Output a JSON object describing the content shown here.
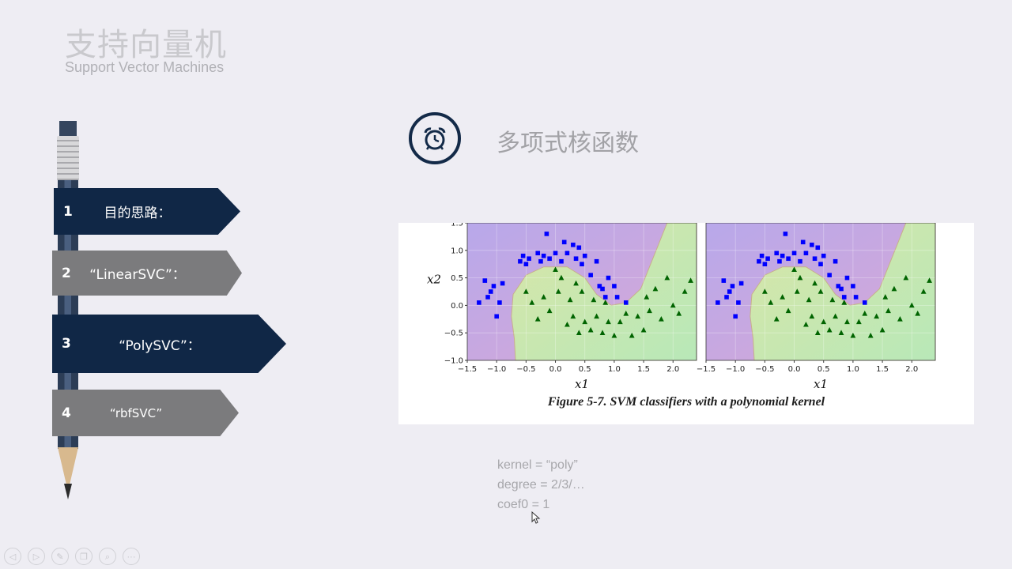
{
  "header": {
    "title_cn": "支持向量机",
    "title_en": "Support Vector Machines"
  },
  "menu": [
    {
      "num": "1",
      "label": "目的思路："
    },
    {
      "num": "2",
      "label": "“LinearSVC”："
    },
    {
      "num": "3",
      "label": "“PolySVC”："
    },
    {
      "num": "4",
      "label": "“rbfSVC”"
    }
  ],
  "section": {
    "icon": "alarm-clock-icon",
    "title": "多项式核函数"
  },
  "figure": {
    "caption": "Figure 5-7. SVM classifiers with a polynomial kernel"
  },
  "chart_data": [
    {
      "type": "scatter",
      "title": "",
      "xlabel": "x1",
      "ylabel": "x2",
      "xlim": [
        -1.5,
        2.4
      ],
      "ylim": [
        -1.0,
        1.5
      ],
      "x_ticks": [
        "−1.5",
        "−1.0",
        "−0.5",
        "0.0",
        "0.5",
        "1.0",
        "1.5",
        "2.0"
      ],
      "y_ticks": [
        "−1.0",
        "−0.5",
        "0.0",
        "0.5",
        "1.0",
        "1.5"
      ],
      "grid": true,
      "series": [
        {
          "marker": "square",
          "color": "#0000ff",
          "x": [
            -1.3,
            -1.2,
            -1.15,
            -1.1,
            -1.05,
            -1.0,
            -0.95,
            -0.9,
            -0.6,
            -0.55,
            -0.5,
            -0.45,
            -0.3,
            -0.25,
            -0.2,
            -0.15,
            -0.1,
            0.0,
            0.1,
            0.15,
            0.2,
            0.3,
            0.35,
            0.4,
            0.45,
            0.5,
            0.6,
            0.7,
            0.75,
            0.8,
            0.85,
            0.9,
            1.0,
            1.05,
            1.2
          ],
          "y": [
            0.05,
            0.45,
            0.15,
            0.25,
            0.35,
            -0.2,
            0.05,
            0.4,
            0.8,
            0.9,
            0.75,
            0.85,
            0.95,
            0.8,
            0.9,
            1.3,
            0.85,
            0.95,
            0.8,
            1.15,
            0.95,
            1.1,
            0.85,
            1.05,
            0.75,
            0.9,
            0.55,
            0.8,
            0.35,
            0.3,
            0.15,
            0.5,
            0.35,
            0.15,
            0.05
          ]
        },
        {
          "marker": "triangle",
          "color": "#006400",
          "x": [
            -0.5,
            -0.4,
            -0.3,
            -0.2,
            -0.1,
            0.0,
            0.05,
            0.1,
            0.2,
            0.25,
            0.3,
            0.35,
            0.4,
            0.45,
            0.5,
            0.6,
            0.65,
            0.7,
            0.8,
            0.85,
            0.9,
            1.0,
            1.1,
            1.2,
            1.3,
            1.4,
            1.5,
            1.55,
            1.6,
            1.7,
            1.8,
            1.9,
            2.0,
            2.1,
            2.2,
            2.3
          ],
          "y": [
            0.25,
            0.05,
            -0.25,
            0.15,
            -0.1,
            0.65,
            0.25,
            0.5,
            -0.35,
            0.1,
            -0.2,
            0.4,
            -0.5,
            0.25,
            -0.3,
            -0.45,
            0.1,
            -0.2,
            -0.5,
            0.05,
            -0.3,
            -0.55,
            -0.3,
            -0.15,
            -0.55,
            -0.2,
            -0.45,
            0.15,
            -0.1,
            0.3,
            -0.25,
            0.5,
            0.0,
            -0.15,
            0.25,
            0.45
          ]
        }
      ]
    },
    {
      "type": "scatter",
      "title": "",
      "xlabel": "x1",
      "ylabel": "",
      "xlim": [
        -1.5,
        2.4
      ],
      "ylim": [
        -1.0,
        1.5
      ],
      "x_ticks": [
        "−1.5",
        "−1.0",
        "−0.5",
        "0.0",
        "0.5",
        "1.0",
        "1.5",
        "2.0"
      ],
      "y_ticks": [],
      "grid": true,
      "series": [
        {
          "marker": "square",
          "color": "#0000ff",
          "x": [
            -1.3,
            -1.2,
            -1.15,
            -1.1,
            -1.05,
            -1.0,
            -0.95,
            -0.9,
            -0.6,
            -0.55,
            -0.5,
            -0.45,
            -0.3,
            -0.25,
            -0.2,
            -0.15,
            -0.1,
            0.0,
            0.1,
            0.15,
            0.2,
            0.3,
            0.35,
            0.4,
            0.45,
            0.5,
            0.6,
            0.7,
            0.75,
            0.8,
            0.85,
            0.9,
            1.0,
            1.05,
            1.2
          ],
          "y": [
            0.05,
            0.45,
            0.15,
            0.25,
            0.35,
            -0.2,
            0.05,
            0.4,
            0.8,
            0.9,
            0.75,
            0.85,
            0.95,
            0.8,
            0.9,
            1.3,
            0.85,
            0.95,
            0.8,
            1.15,
            0.95,
            1.1,
            0.85,
            1.05,
            0.75,
            0.9,
            0.55,
            0.8,
            0.35,
            0.3,
            0.15,
            0.5,
            0.35,
            0.15,
            0.05
          ]
        },
        {
          "marker": "triangle",
          "color": "#006400",
          "x": [
            -0.5,
            -0.4,
            -0.3,
            -0.2,
            -0.1,
            0.0,
            0.05,
            0.1,
            0.2,
            0.25,
            0.3,
            0.35,
            0.4,
            0.45,
            0.5,
            0.6,
            0.65,
            0.7,
            0.8,
            0.85,
            0.9,
            1.0,
            1.1,
            1.2,
            1.3,
            1.4,
            1.5,
            1.55,
            1.6,
            1.7,
            1.8,
            1.9,
            2.0,
            2.1,
            2.2,
            2.3
          ],
          "y": [
            0.25,
            0.05,
            -0.25,
            0.15,
            -0.1,
            0.65,
            0.25,
            0.5,
            -0.35,
            0.1,
            -0.2,
            0.4,
            -0.5,
            0.25,
            -0.3,
            -0.45,
            0.1,
            -0.2,
            -0.5,
            0.05,
            -0.3,
            -0.55,
            -0.3,
            -0.15,
            -0.55,
            -0.2,
            -0.45,
            0.15,
            -0.1,
            0.3,
            -0.25,
            0.5,
            0.0,
            -0.15,
            0.25,
            0.45
          ]
        }
      ]
    }
  ],
  "code_lines": [
    "kernel = “poly”",
    "degree = 2/3/…",
    "coef0 = 1"
  ],
  "toolbar": {
    "items": [
      {
        "icon": "previous-icon",
        "glyph": "◁"
      },
      {
        "icon": "next-icon",
        "glyph": "▷"
      },
      {
        "icon": "pen-icon",
        "glyph": "✎"
      },
      {
        "icon": "copy-icon",
        "glyph": "❐"
      },
      {
        "icon": "zoom-icon",
        "glyph": "⌕"
      },
      {
        "icon": "more-icon",
        "glyph": "···"
      }
    ]
  },
  "colors": {
    "navy": "#102746",
    "gray": "#7b7b7d",
    "purple_region": "#c9a9dc",
    "green_region": "#cfe3a9",
    "blue_points": "#0000ff",
    "green_points": "#006400"
  }
}
